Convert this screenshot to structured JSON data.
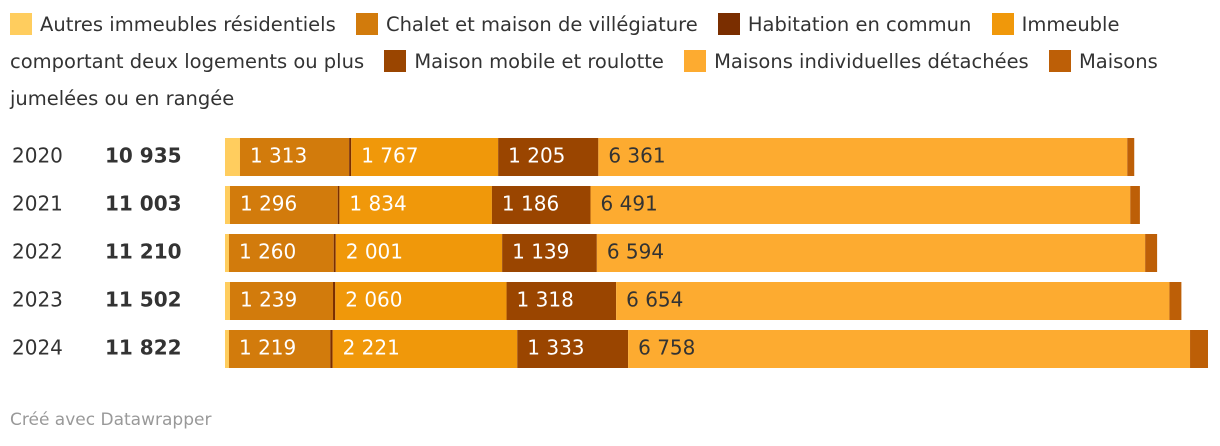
{
  "chart_data": {
    "type": "stacked-bar-horizontal",
    "categories": [
      "2020",
      "2021",
      "2022",
      "2023",
      "2024"
    ],
    "totals": [
      10935,
      11003,
      11210,
      11502,
      11822
    ],
    "total_labels": [
      "10 935",
      "11 003",
      "11 210",
      "11 502",
      "11 822"
    ],
    "xlim": [
      0,
      11822
    ],
    "series": [
      {
        "name": "Autres immeubles résidentiels",
        "color": "#ffcd5e",
        "values": [
          180,
          60,
          48,
          60,
          48
        ]
      },
      {
        "name": "Chalet et maison de villégiature",
        "color": "#d27b0c",
        "values": [
          1313,
          1296,
          1260,
          1239,
          1219
        ],
        "value_labels": [
          "1 313",
          "1 296",
          "1 260",
          "1 239",
          "1 219"
        ]
      },
      {
        "name": "Habitation en commun",
        "color": "#7a2e00",
        "values": [
          25,
          20,
          24,
          27,
          27
        ]
      },
      {
        "name": "Immeuble comportant deux logements ou plus",
        "color": "#f0980a",
        "values": [
          1767,
          1834,
          2001,
          2060,
          2221
        ],
        "value_labels": [
          "1 767",
          "1 834",
          "2 001",
          "2 060",
          "2 221"
        ]
      },
      {
        "name": "Maison mobile et roulotte",
        "color": "#9a4500",
        "values": [
          1205,
          1186,
          1139,
          1318,
          1333
        ],
        "value_labels": [
          "1 205",
          "1 186",
          "1 139",
          "1 318",
          "1 333"
        ]
      },
      {
        "name": "Maisons individuelles détachées",
        "color": "#fdab30",
        "values": [
          6361,
          6491,
          6594,
          6654,
          6758
        ],
        "value_labels": [
          "6 361",
          "6 491",
          "6 594",
          "6 654",
          "6 758"
        ]
      },
      {
        "name": "Maisons jumelées ou en rangée",
        "color": "#bd5f07",
        "values": [
          84,
          116,
          144,
          144,
          216
        ]
      }
    ],
    "footer": "Créé avec Datawrapper"
  }
}
